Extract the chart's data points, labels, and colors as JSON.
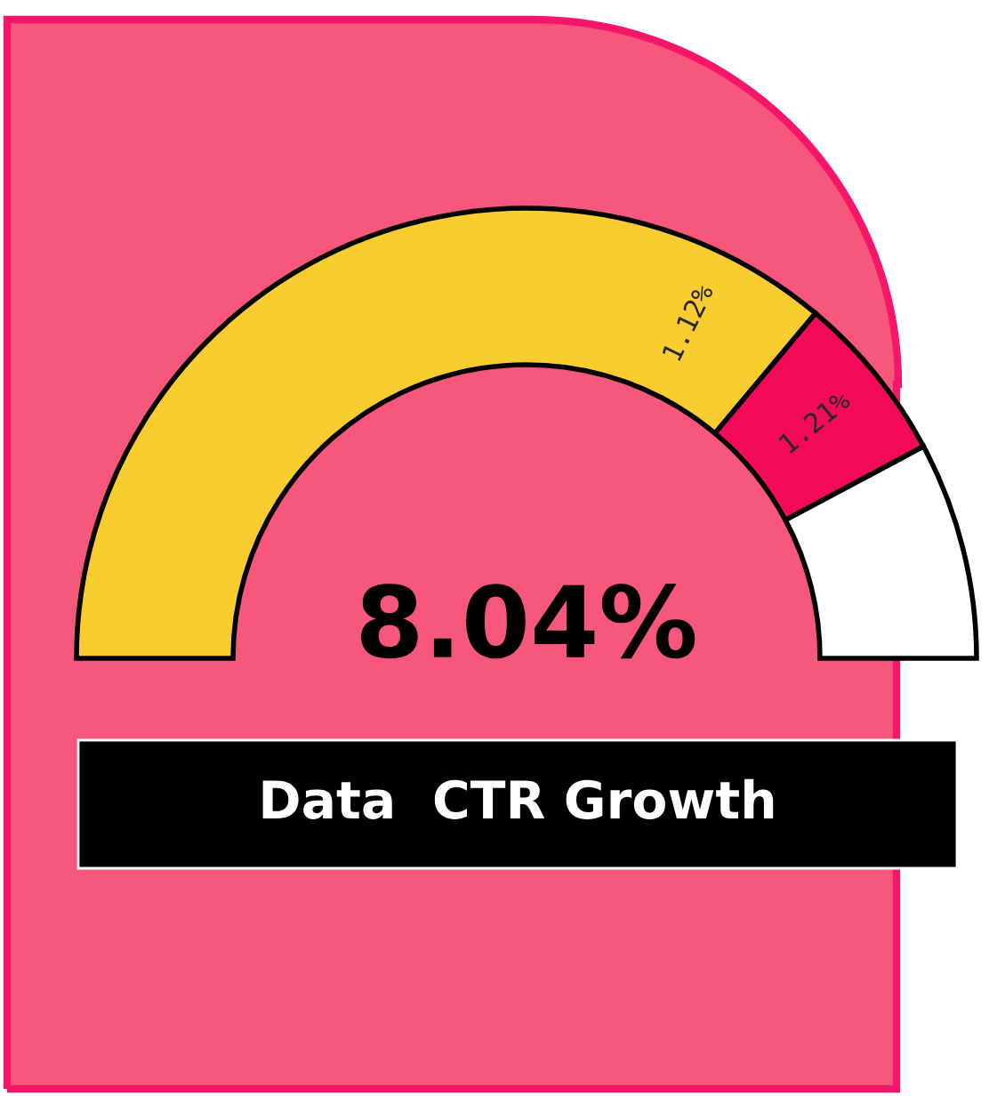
{
  "chart_data": {
    "type": "donut",
    "title": "Data  CTR Growth",
    "categories": [
      null,
      null,
      null
    ],
    "values": [
      72.2,
      12.2,
      15.6
    ],
    "colors": [
      "#f9cd30",
      "#f50a5a",
      "#ffffff"
    ],
    "annotations": [
      "8.04%",
      "1.12%",
      "1.21%"
    ]
  }
}
